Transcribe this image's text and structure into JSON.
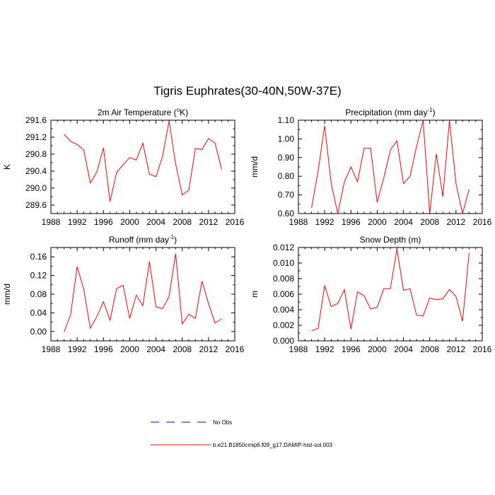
{
  "figure_title": "Tigris Euphrates(30-40N,50W-37E)",
  "legend": [
    {
      "label": "No Obs",
      "color": "#0000ff",
      "style": "dashed"
    },
    {
      "label": "b.e21.B1850cmip6.f09_g17.DAMIP-hist-sol.003",
      "color": "#ff0000",
      "style": "solid"
    }
  ],
  "chart_data": [
    {
      "type": "line",
      "title": "2m Air Temperature (ºK)",
      "title_main": "2m Air Temperature (",
      "title_sup": "o",
      "title_tail": "K)",
      "ylabel": "K",
      "xlim": [
        1988,
        2016
      ],
      "ylim": [
        289.4,
        291.6
      ],
      "xticks": [
        1988,
        1992,
        1996,
        2000,
        2004,
        2008,
        2012,
        2016
      ],
      "yticks": [
        289.6,
        290.0,
        290.4,
        290.8,
        291.2,
        291.6
      ],
      "ytick_labels": [
        "289.6",
        "290.0",
        "290.4",
        "290.8",
        "291.2",
        "291.6"
      ],
      "series": [
        {
          "color": "#ff0000",
          "x": [
            1990,
            1991,
            1992,
            1993,
            1994,
            1995,
            1996,
            1997,
            1998,
            1999,
            2000,
            2001,
            2002,
            2003,
            2004,
            2005,
            2006,
            2007,
            2008,
            2009,
            2010,
            2011,
            2012,
            2013,
            2014
          ],
          "values": [
            291.27,
            291.1,
            291.03,
            290.9,
            290.12,
            290.38,
            290.95,
            289.68,
            290.37,
            290.55,
            290.72,
            290.66,
            291.06,
            290.33,
            290.27,
            290.75,
            291.58,
            290.57,
            289.84,
            289.95,
            290.93,
            290.91,
            291.17,
            291.06,
            290.44
          ]
        }
      ]
    },
    {
      "type": "line",
      "title": "Precipitation (mm day-1)",
      "title_main": "Precipitation (mm day",
      "title_sup": "-1",
      "title_tail": ")",
      "ylabel": "mm/d",
      "xlim": [
        1988,
        2016
      ],
      "ylim": [
        0.6,
        1.1
      ],
      "xticks": [
        1988,
        1992,
        1996,
        2000,
        2004,
        2008,
        2012,
        2016
      ],
      "yticks": [
        0.6,
        0.7,
        0.8,
        0.9,
        1.0,
        1.1
      ],
      "ytick_labels": [
        "0.60",
        "0.70",
        "0.80",
        "0.90",
        "1.00",
        "1.10"
      ],
      "series": [
        {
          "color": "#ff0000",
          "x": [
            1990,
            1991,
            1992,
            1993,
            1994,
            1995,
            1996,
            1997,
            1998,
            1999,
            2000,
            2001,
            2002,
            2003,
            2004,
            2005,
            2006,
            2007,
            2008,
            2009,
            2010,
            2011,
            2012,
            2013,
            2014
          ],
          "values": [
            0.63,
            0.83,
            1.07,
            0.76,
            0.6,
            0.77,
            0.85,
            0.77,
            0.95,
            0.95,
            0.66,
            0.79,
            0.94,
            0.99,
            0.76,
            0.8,
            0.96,
            1.1,
            0.6,
            0.92,
            0.69,
            1.1,
            0.76,
            0.6,
            0.73
          ]
        }
      ]
    },
    {
      "type": "line",
      "title": "Runoff (mm day-1)",
      "title_main": "Runoff (mm day",
      "title_sup": "-1",
      "title_tail": ")",
      "ylabel": "mm/d",
      "xlim": [
        1988,
        2016
      ],
      "ylim": [
        -0.02,
        0.18
      ],
      "xticks": [
        1988,
        1992,
        1996,
        2000,
        2004,
        2008,
        2012,
        2016
      ],
      "yticks": [
        0.0,
        0.04,
        0.08,
        0.12,
        0.16
      ],
      "ytick_labels": [
        "0.00",
        "0.04",
        "0.08",
        "0.12",
        "0.16"
      ],
      "series": [
        {
          "color": "#ff0000",
          "x": [
            1990,
            1991,
            1992,
            1993,
            1994,
            1995,
            1996,
            1997,
            1998,
            1999,
            2000,
            2001,
            2002,
            2003,
            2004,
            2005,
            2006,
            2007,
            2008,
            2009,
            2010,
            2011,
            2012,
            2013,
            2014
          ],
          "values": [
            -0.001,
            0.036,
            0.139,
            0.091,
            0.007,
            0.032,
            0.064,
            0.024,
            0.092,
            0.099,
            0.028,
            0.078,
            0.055,
            0.15,
            0.053,
            0.049,
            0.075,
            0.167,
            0.016,
            0.037,
            0.028,
            0.108,
            0.06,
            0.018,
            0.027
          ]
        }
      ]
    },
    {
      "type": "line",
      "title": "Snow Depth (m)",
      "title_main": "Snow Depth (m)",
      "title_sup": "",
      "title_tail": "",
      "ylabel": "m",
      "xlim": [
        1988,
        2016
      ],
      "ylim": [
        0.0,
        0.012
      ],
      "xticks": [
        1988,
        1992,
        1996,
        2000,
        2004,
        2008,
        2012,
        2016
      ],
      "yticks": [
        0.0,
        0.002,
        0.004,
        0.006,
        0.008,
        0.01,
        0.012
      ],
      "ytick_labels": [
        "0.000",
        "0.002",
        "0.004",
        "0.006",
        "0.008",
        "0.010",
        "0.012"
      ],
      "series": [
        {
          "color": "#ff0000",
          "x": [
            1990,
            1991,
            1992,
            1993,
            1994,
            1995,
            1996,
            1997,
            1998,
            1999,
            2000,
            2001,
            2002,
            2003,
            2004,
            2005,
            2006,
            2007,
            2008,
            2009,
            2010,
            2011,
            2012,
            2013,
            2014
          ],
          "values": [
            0.0013,
            0.0016,
            0.0071,
            0.0044,
            0.0048,
            0.0066,
            0.0015,
            0.0063,
            0.0058,
            0.0041,
            0.0043,
            0.0067,
            0.0067,
            0.0118,
            0.0065,
            0.0067,
            0.0033,
            0.0032,
            0.0055,
            0.0053,
            0.0054,
            0.0066,
            0.0057,
            0.0025,
            0.0113
          ]
        }
      ]
    }
  ]
}
